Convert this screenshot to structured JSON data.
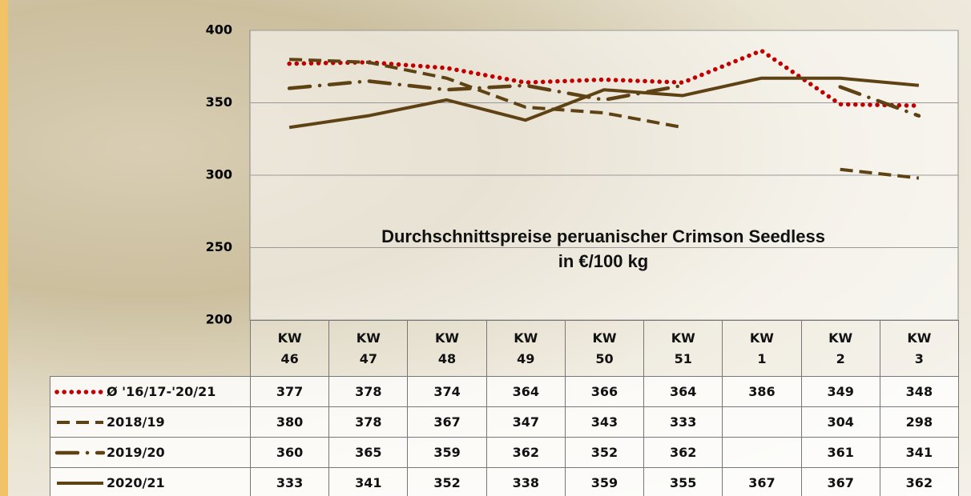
{
  "chart_data": {
    "type": "line",
    "title": "Durchschnittspreise peruanischer Crimson Seedless",
    "subtitle": "in €/100 kg",
    "categories": [
      "KW\n46",
      "KW\n47",
      "KW\n48",
      "KW\n49",
      "KW\n50",
      "KW\n51",
      "KW\n1",
      "KW\n2",
      "KW\n3"
    ],
    "ylim": [
      200,
      400
    ],
    "yticks": [
      200,
      250,
      300,
      350,
      400
    ],
    "grid": true,
    "series": [
      {
        "name": "Ø '16/17-'20/21",
        "color": "#c00000",
        "style": "dotted",
        "values": [
          377,
          378,
          374,
          364,
          366,
          364,
          386,
          349,
          348
        ]
      },
      {
        "name": "2018/19",
        "color": "#5e4214",
        "style": "dashed",
        "values": [
          380,
          378,
          367,
          347,
          343,
          333,
          null,
          304,
          298
        ]
      },
      {
        "name": "2019/20",
        "color": "#5e4214",
        "style": "dashdot",
        "values": [
          360,
          365,
          359,
          362,
          352,
          362,
          null,
          361,
          341
        ]
      },
      {
        "name": "2020/21",
        "color": "#5e4214",
        "style": "solid",
        "values": [
          333,
          341,
          352,
          338,
          359,
          355,
          367,
          367,
          362
        ]
      }
    ]
  }
}
